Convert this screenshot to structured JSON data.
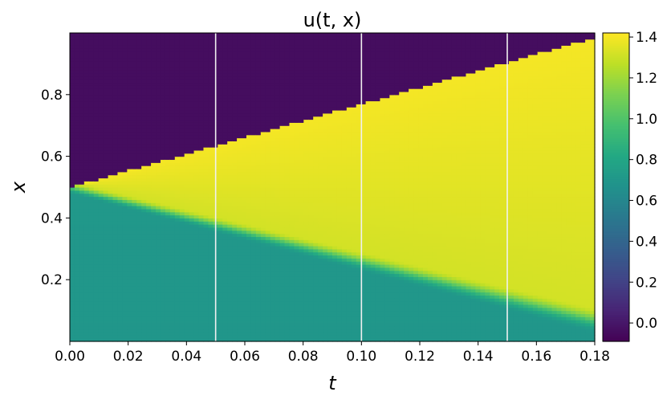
{
  "chart_data": {
    "type": "heatmap",
    "title": "u(t, x)",
    "xlabel": "t",
    "ylabel": "x",
    "xlim": [
      0.0,
      0.18
    ],
    "ylim": [
      0.0,
      1.0
    ],
    "x_ticks": [
      0.0,
      0.02,
      0.04,
      0.06,
      0.08,
      0.1,
      0.12,
      0.14,
      0.16,
      0.18
    ],
    "x_tick_labels": [
      "0.00",
      "0.02",
      "0.04",
      "0.06",
      "0.08",
      "0.10",
      "0.12",
      "0.14",
      "0.16",
      "0.18"
    ],
    "y_ticks": [
      0.2,
      0.4,
      0.6,
      0.8
    ],
    "y_tick_labels": [
      "0.2",
      "0.4",
      "0.6",
      "0.8"
    ],
    "colormap": "viridis",
    "colorbar": {
      "vmin": -0.09,
      "vmax": 1.42,
      "ticks": [
        0.0,
        0.2,
        0.4,
        0.6,
        0.8,
        1.0,
        1.2,
        1.4
      ],
      "tick_labels": [
        "0.0",
        "0.2",
        "0.4",
        "0.6",
        "0.8",
        "1.0",
        "1.2",
        "1.4"
      ]
    },
    "field": {
      "initial_interface_x": 0.5,
      "left_state_value": 0.72,
      "right_state_value": -0.04,
      "shock_speed": 2.7,
      "rarefaction_tail_speed": -2.4,
      "plateau_value": 1.32,
      "plateau_value_at_shock": 1.4
    },
    "vertical_lines_t": [
      0.05,
      0.1,
      0.15
    ],
    "vertical_line_color": "#f0f0f0",
    "grid": false
  }
}
